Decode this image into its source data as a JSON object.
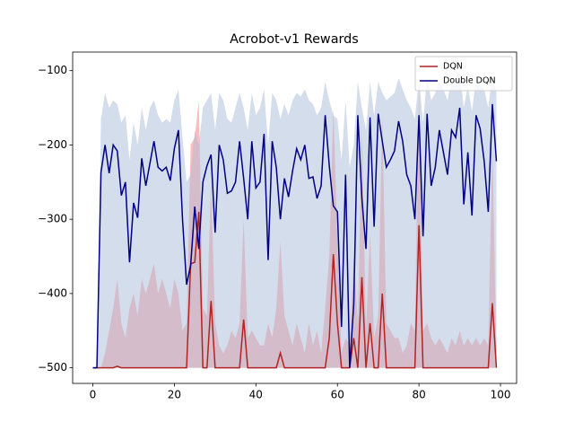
{
  "chart_data": {
    "type": "line",
    "title": "Acrobot-v1 Rewards",
    "x": [
      0,
      1,
      2,
      3,
      4,
      5,
      6,
      7,
      8,
      9,
      10,
      11,
      12,
      13,
      14,
      15,
      16,
      17,
      18,
      19,
      20,
      21,
      22,
      23,
      24,
      25,
      26,
      27,
      28,
      29,
      30,
      31,
      32,
      33,
      34,
      35,
      36,
      37,
      38,
      39,
      40,
      41,
      42,
      43,
      44,
      45,
      46,
      47,
      48,
      49,
      50,
      51,
      52,
      53,
      54,
      55,
      56,
      57,
      58,
      59,
      60,
      61,
      62,
      63,
      64,
      65,
      66,
      67,
      68,
      69,
      70,
      71,
      72,
      73,
      74,
      75,
      76,
      77,
      78,
      79,
      80,
      81,
      82,
      83,
      84,
      85,
      86,
      87,
      88,
      89,
      90,
      91,
      92,
      93,
      94,
      95,
      96,
      97,
      98,
      99
    ],
    "xlim": [
      -4.95,
      103.95
    ],
    "xticks": [
      0,
      20,
      40,
      60,
      80,
      100
    ],
    "ylim": [
      -521,
      -75
    ],
    "yticks": [
      {
        "value": -500,
        "label": "−500"
      },
      {
        "value": -400,
        "label": "−400"
      },
      {
        "value": -300,
        "label": "−300"
      },
      {
        "value": -200,
        "label": "−200"
      },
      {
        "value": -100,
        "label": "−100"
      }
    ],
    "legend": "upper right",
    "series": [
      {
        "name": "DQN",
        "color": "#b22222",
        "band_color": "#ff9090",
        "values": [
          -500,
          -500,
          -500,
          -500,
          -500,
          -500,
          -498,
          -500,
          -500,
          -500,
          -500,
          -500,
          -500,
          -500,
          -500,
          -500,
          -500,
          -500,
          -500,
          -500,
          -500,
          -500,
          -500,
          -500,
          -360,
          -358,
          -290,
          -500,
          -500,
          -410,
          -500,
          -500,
          -500,
          -500,
          -500,
          -500,
          -500,
          -435,
          -500,
          -500,
          -500,
          -500,
          -500,
          -500,
          -500,
          -500,
          -480,
          -500,
          -500,
          -500,
          -500,
          -500,
          -500,
          -500,
          -500,
          -500,
          -500,
          -500,
          -460,
          -347,
          -440,
          -500,
          -500,
          -500,
          -460,
          -500,
          -378,
          -500,
          -440,
          -500,
          -500,
          -400,
          -500,
          -500,
          -500,
          -500,
          -500,
          -500,
          -500,
          -500,
          -308,
          -500,
          -500,
          -500,
          -500,
          -500,
          -500,
          -500,
          -500,
          -500,
          -500,
          -500,
          -500,
          -500,
          -500,
          -500,
          -500,
          -500,
          -413,
          -500
        ],
        "band_upper": [
          -500,
          -500,
          -500,
          -480,
          -450,
          -420,
          -380,
          -440,
          -460,
          -420,
          -400,
          -430,
          -380,
          -400,
          -380,
          -360,
          -400,
          -380,
          -400,
          -420,
          -380,
          -400,
          -450,
          -440,
          -200,
          -190,
          -140,
          -420,
          -430,
          -250,
          -440,
          -470,
          -480,
          -470,
          -450,
          -460,
          -440,
          -300,
          -460,
          -450,
          -460,
          -470,
          -470,
          -440,
          -460,
          -420,
          -330,
          -430,
          -450,
          -470,
          -440,
          -460,
          -480,
          -440,
          -470,
          -450,
          -480,
          -420,
          -350,
          -150,
          -330,
          -480,
          -460,
          -470,
          -350,
          -440,
          -180,
          -450,
          -320,
          -460,
          -430,
          -160,
          -440,
          -450,
          -460,
          -460,
          -480,
          -470,
          -440,
          -450,
          -120,
          -450,
          -440,
          -460,
          -470,
          -460,
          -470,
          -480,
          -460,
          -470,
          -450,
          -470,
          -460,
          -470,
          -460,
          -470,
          -460,
          -470,
          -200,
          -480
        ],
        "band_lower": [
          -500,
          -500,
          -500,
          -500,
          -500,
          -500,
          -500,
          -500,
          -500,
          -500,
          -500,
          -500,
          -500,
          -500,
          -500,
          -500,
          -500,
          -500,
          -500,
          -500,
          -500,
          -500,
          -500,
          -500,
          -500,
          -500,
          -500,
          -500,
          -500,
          -500,
          -500,
          -500,
          -500,
          -500,
          -500,
          -500,
          -500,
          -500,
          -500,
          -500,
          -500,
          -500,
          -500,
          -500,
          -500,
          -500,
          -500,
          -500,
          -500,
          -500,
          -500,
          -500,
          -500,
          -500,
          -500,
          -500,
          -500,
          -500,
          -500,
          -500,
          -500,
          -500,
          -500,
          -500,
          -500,
          -500,
          -500,
          -500,
          -500,
          -500,
          -500,
          -500,
          -500,
          -500,
          -500,
          -500,
          -500,
          -500,
          -500,
          -500,
          -500,
          -500,
          -500,
          -500,
          -500,
          -500,
          -500,
          -500,
          -500,
          -500,
          -500,
          -500,
          -500,
          -500,
          -500,
          -500,
          -500,
          -500,
          -500,
          -500
        ]
      },
      {
        "name": "Double DQN",
        "color": "#000080",
        "band_color": "#a9bcd8",
        "values": [
          -500,
          -500,
          -237,
          -200,
          -238,
          -200,
          -208,
          -268,
          -250,
          -358,
          -278,
          -298,
          -218,
          -255,
          -225,
          -195,
          -230,
          -235,
          -230,
          -248,
          -205,
          -180,
          -300,
          -388,
          -362,
          -283,
          -340,
          -250,
          -228,
          -213,
          -318,
          -200,
          -220,
          -265,
          -262,
          -250,
          -195,
          -245,
          -300,
          -195,
          -258,
          -250,
          -185,
          -355,
          -195,
          -230,
          -300,
          -245,
          -270,
          -235,
          -205,
          -220,
          -200,
          -245,
          -243,
          -272,
          -255,
          -160,
          -228,
          -282,
          -290,
          -445,
          -240,
          -500,
          -415,
          -160,
          -272,
          -340,
          -163,
          -310,
          -158,
          -195,
          -230,
          -220,
          -208,
          -168,
          -195,
          -240,
          -255,
          -300,
          -160,
          -323,
          -158,
          -255,
          -230,
          -180,
          -210,
          -240,
          -180,
          -190,
          -150,
          -280,
          -210,
          -295,
          -160,
          -178,
          -222,
          -290,
          -145,
          -222
        ],
        "band_upper": [
          -500,
          -500,
          -165,
          -130,
          -150,
          -140,
          -145,
          -170,
          -160,
          -220,
          -170,
          -200,
          -150,
          -180,
          -150,
          -140,
          -160,
          -170,
          -165,
          -170,
          -140,
          -125,
          -190,
          -250,
          -240,
          -180,
          -200,
          -150,
          -140,
          -130,
          -180,
          -130,
          -140,
          -165,
          -170,
          -150,
          -130,
          -150,
          -180,
          -130,
          -160,
          -150,
          -125,
          -200,
          -130,
          -140,
          -165,
          -145,
          -160,
          -140,
          -130,
          -135,
          -125,
          -140,
          -145,
          -160,
          -150,
          -115,
          -140,
          -160,
          -165,
          -220,
          -140,
          -230,
          -200,
          -115,
          -150,
          -180,
          -115,
          -160,
          -115,
          -130,
          -140,
          -135,
          -130,
          -110,
          -125,
          -140,
          -150,
          -165,
          -110,
          -170,
          -108,
          -140,
          -130,
          -115,
          -125,
          -140,
          -110,
          -120,
          -100,
          -150,
          -120,
          -155,
          -110,
          -120,
          -125,
          -150,
          -105,
          -130
        ],
        "band_lower": [
          -500,
          -500,
          -500,
          -500,
          -500,
          -500,
          -500,
          -500,
          -500,
          -500,
          -500,
          -500,
          -500,
          -500,
          -500,
          -500,
          -500,
          -500,
          -500,
          -500,
          -500,
          -500,
          -500,
          -500,
          -500,
          -500,
          -500,
          -500,
          -500,
          -500,
          -500,
          -500,
          -500,
          -500,
          -500,
          -500,
          -500,
          -500,
          -500,
          -500,
          -500,
          -500,
          -500,
          -500,
          -500,
          -500,
          -500,
          -500,
          -500,
          -500,
          -500,
          -500,
          -500,
          -500,
          -500,
          -500,
          -500,
          -500,
          -500,
          -500,
          -500,
          -500,
          -500,
          -500,
          -500,
          -500,
          -500,
          -500,
          -500,
          -500,
          -500,
          -500,
          -500,
          -500,
          -500,
          -500,
          -500,
          -500,
          -500,
          -500,
          -500,
          -500,
          -500,
          -500,
          -500,
          -500,
          -500,
          -500,
          -500,
          -500,
          -500,
          -500,
          -500,
          -500,
          -500,
          -500,
          -500,
          -500,
          -500,
          -500
        ]
      }
    ]
  }
}
